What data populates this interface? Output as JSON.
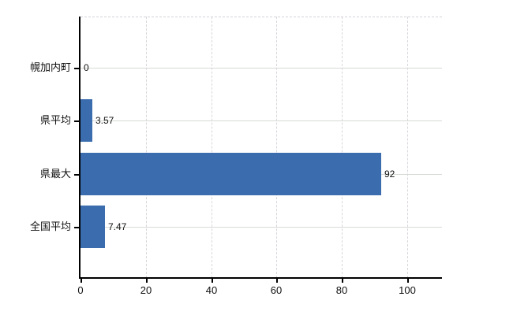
{
  "chart_data": {
    "type": "bar",
    "orientation": "horizontal",
    "title": "",
    "xlabel": "",
    "ylabel": "",
    "categories": [
      "幌加内町",
      "県平均",
      "県最大",
      "全国平均"
    ],
    "values": [
      0,
      3.57,
      92,
      7.47
    ],
    "value_labels": [
      "0",
      "3.57",
      "92",
      "7.47"
    ],
    "xticks": [
      0,
      20,
      40,
      60,
      80,
      100
    ],
    "xtick_labels": [
      "0",
      "20",
      "40",
      "60",
      "80",
      "100"
    ],
    "xlim": [
      0,
      110.6
    ],
    "grid": {
      "vertical": "dashed",
      "horizontal": "solid",
      "top_border": "dashed"
    },
    "legend": "none",
    "colors": {
      "bar": "#3b6dae",
      "axis": "#000000",
      "grid_vertical": "#d9d6db",
      "grid_horizontal": "#d6dbd4",
      "text": "#111111",
      "background": "#ffffff"
    }
  }
}
